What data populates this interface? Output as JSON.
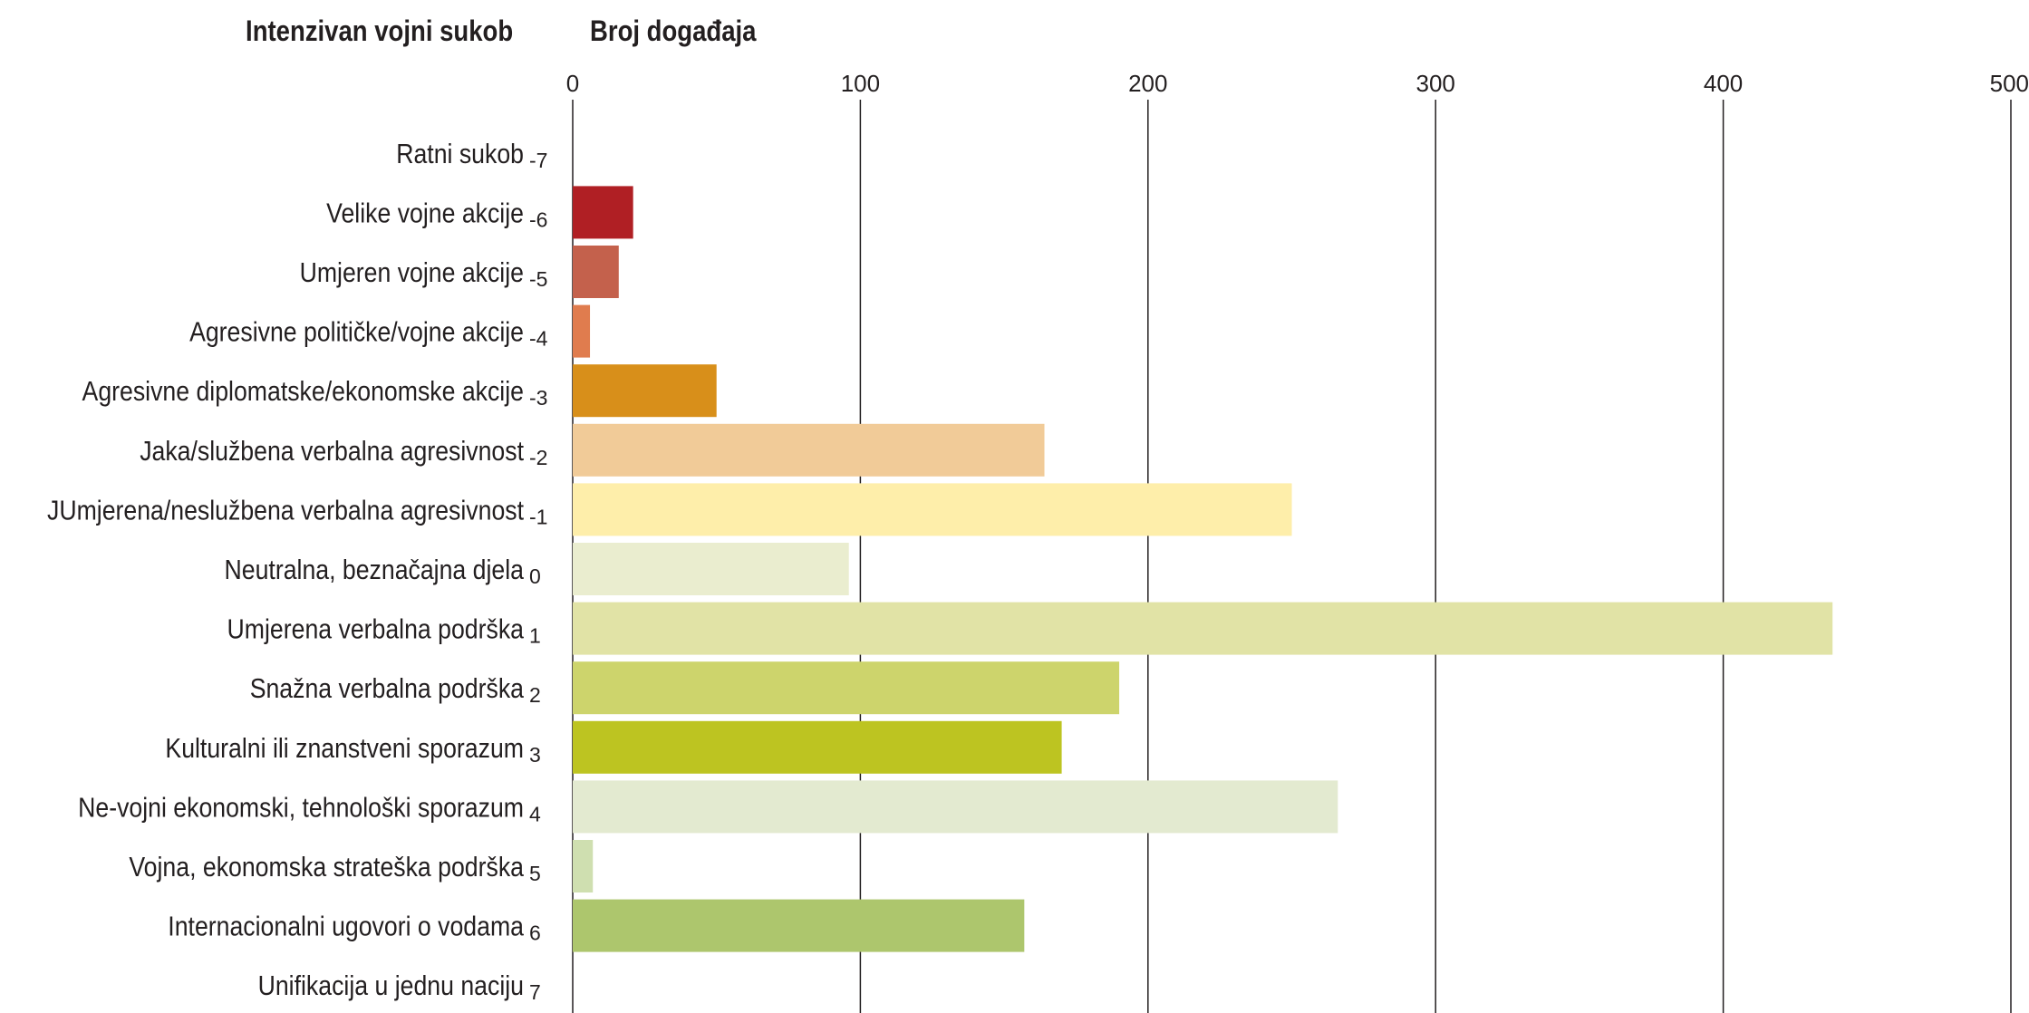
{
  "chart_data": {
    "type": "bar",
    "orientation": "horizontal",
    "category_header": "Intenzivan vojni sukob",
    "value_header": "Broj događaja",
    "xlim": [
      0,
      500
    ],
    "x_ticks": [
      "0",
      "100",
      "200",
      "300",
      "400",
      "500"
    ],
    "grid": true,
    "rows": [
      {
        "label": "Ratni sukob",
        "code": "-7",
        "value": 0,
        "color": "#a91e22"
      },
      {
        "label": "Velike vojne akcije",
        "code": "-6",
        "value": 21,
        "color": "#b01f24"
      },
      {
        "label": "Umjeren vojne akcije",
        "code": "-5",
        "value": 16,
        "color": "#c4614c"
      },
      {
        "label": "Agresivne političke/vojne akcije",
        "code": "-4",
        "value": 6,
        "color": "#e07c4e"
      },
      {
        "label": "Agresivne diplomatske/ekonomske akcije",
        "code": "-3",
        "value": 50,
        "color": "#d88f1a"
      },
      {
        "label": "Jaka/službena verbalna agresivnost",
        "code": "-2",
        "value": 164,
        "color": "#f1cb98"
      },
      {
        "label": "JUmjerena/neslužbena verbalna agresivnost",
        "code": "-1",
        "value": 250,
        "color": "#feeeaa"
      },
      {
        "label": "Neutralna, beznačajna djela",
        "code": "0",
        "value": 96,
        "color": "#eaedcf"
      },
      {
        "label": "Umjerena verbalna podrška",
        "code": "1",
        "value": 438,
        "color": "#e1e3a6"
      },
      {
        "label": "Snažna verbalna podrška",
        "code": "2",
        "value": 190,
        "color": "#cdd46c"
      },
      {
        "label": "Kulturalni ili znanstveni sporazum",
        "code": "3",
        "value": 170,
        "color": "#bdc421"
      },
      {
        "label": "Ne-vojni ekonomski, tehnološki sporazum",
        "code": "4",
        "value": 266,
        "color": "#e3ead0"
      },
      {
        "label": "Vojna, ekonomska strateška podrška",
        "code": "5",
        "value": 7,
        "color": "#cfdfb0"
      },
      {
        "label": "Internacionalni ugovori o vodama",
        "code": "6",
        "value": 157,
        "color": "#adc66d"
      },
      {
        "label": "Unifikacija u jednu naciju",
        "code": "7",
        "value": 0,
        "color": "#8fb04f"
      }
    ]
  }
}
